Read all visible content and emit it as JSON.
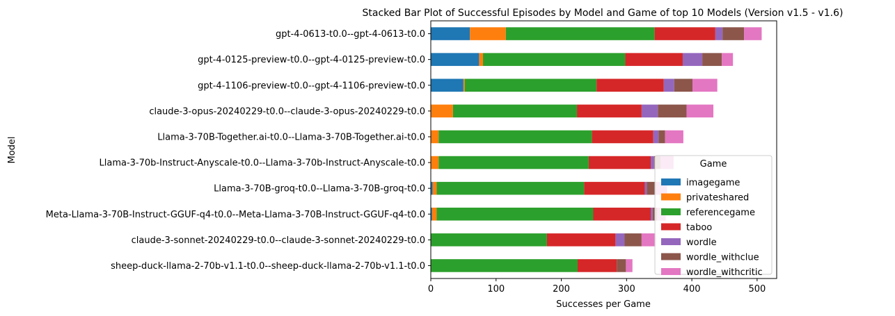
{
  "chart_data": {
    "type": "bar",
    "orientation": "horizontal",
    "stacked": true,
    "title": "Stacked Bar Plot of Successful Episodes by Model and Game of top 10 Models (Version v1.5 - v1.6)",
    "xlabel": "Successes per Game",
    "ylabel": "Model",
    "xlim": [
      0,
      530
    ],
    "xticks": [
      0,
      100,
      200,
      300,
      400,
      500
    ],
    "grid": false,
    "legend_title": "Game",
    "legend_position": "lower-right",
    "categories": [
      "gpt-4-0613-t0.0--gpt-4-0613-t0.0",
      "gpt-4-0125-preview-t0.0--gpt-4-0125-preview-t0.0",
      "gpt-4-1106-preview-t0.0--gpt-4-1106-preview-t0.0",
      "claude-3-opus-20240229-t0.0--claude-3-opus-20240229-t0.0",
      "Llama-3-70B-Together.ai-t0.0--Llama-3-70B-Together.ai-t0.0",
      "Llama-3-70b-Instruct-Anyscale-t0.0--Llama-3-70b-Instruct-Anyscale-t0.0",
      "Llama-3-70B-groq-t0.0--Llama-3-70B-groq-t0.0",
      "Meta-Llama-3-70B-Instruct-GGUF-q4-t0.0--Meta-Llama-3-70B-Instruct-GGUF-q4-t0.0",
      "claude-3-sonnet-20240229-t0.0--claude-3-sonnet-20240229-t0.0",
      "sheep-duck-llama-2-70b-v1.1-t0.0--sheep-duck-llama-2-70b-v1.1-t0.0"
    ],
    "series": [
      {
        "name": "imagegame",
        "color": "#1f77b4",
        "values": [
          60,
          74,
          50,
          0,
          0,
          0,
          3,
          2,
          0,
          0
        ]
      },
      {
        "name": "privateshared",
        "color": "#ff7f0e",
        "values": [
          55,
          6,
          2,
          34,
          12,
          12,
          6,
          7,
          0,
          0
        ]
      },
      {
        "name": "referencegame",
        "color": "#2ca02c",
        "values": [
          228,
          218,
          202,
          190,
          235,
          230,
          226,
          240,
          178,
          225
        ]
      },
      {
        "name": "taboo",
        "color": "#d62728",
        "values": [
          93,
          88,
          103,
          99,
          94,
          95,
          93,
          88,
          105,
          60
        ]
      },
      {
        "name": "wordle",
        "color": "#9467bd",
        "values": [
          11,
          30,
          16,
          25,
          8,
          5,
          3,
          3,
          14,
          0
        ]
      },
      {
        "name": "wordle_withclue",
        "color": "#8c564b",
        "values": [
          33,
          30,
          28,
          44,
          10,
          10,
          14,
          7,
          26,
          14
        ]
      },
      {
        "name": "wordle_withcritic",
        "color": "#e377c2",
        "values": [
          27,
          17,
          38,
          41,
          28,
          20,
          17,
          13,
          22,
          10
        ]
      }
    ]
  }
}
